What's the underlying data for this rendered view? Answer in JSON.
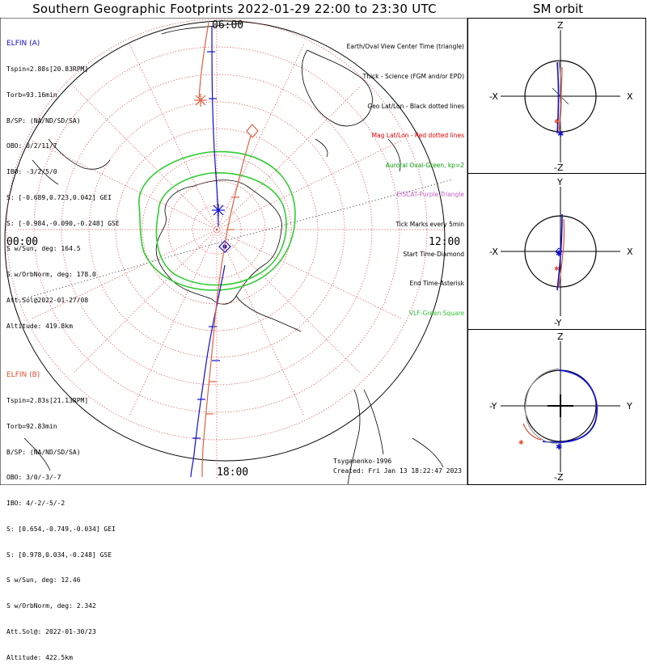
{
  "title": "Southern Geographic Footprints 2022-01-29 22:00 to 23:30 UTC",
  "sm_title": "SM orbit",
  "time_labels": {
    "top": "06:00",
    "left": "00:00",
    "right": "12:00",
    "bottom": "18:00"
  },
  "elfin_a": {
    "name": "ELFIN (A)",
    "color": "#1010d0",
    "lines": [
      "Tspin=2.88s[20.83RPM]",
      "Torb=93.16min",
      "B/SP: (NA/ND/SD/SA)",
      "OBO: 0/2/11/7",
      "IBO: -3/2/5/0",
      "S: [-0.689,0.723,0.042] GEI",
      "S: [-0.984,-0.090,-0.248] GSE",
      "S w/Sun, deg: 164.5",
      "S w/OrbNorm, deg: 178.0",
      "Att.Sol@2022-01-27/08",
      "Altitude: 419.8km"
    ]
  },
  "elfin_b": {
    "name": "ELFIN (B)",
    "color": "#e05030",
    "lines": [
      "Tspin=2.83s[21.13RPM]",
      "Torb=92.83min",
      "B/SP: (NA/ND/SD/SA)",
      "OBO: 3/0/-3/-7",
      "IBO: 4/-2/-5/-2",
      "S: [0.654,-0.749,-0.034] GEI",
      "S: [0.978,0.034,-0.248] GSE",
      "S w/Sun, deg: 12.46",
      "S w/OrbNorm, deg: 2.342",
      "Att.Sol@: 2022-01-30/23",
      "Altitude: 422.5km"
    ]
  },
  "legend": [
    {
      "text": "Earth/Oval View Center Time (triangle)",
      "color": "#000000"
    },
    {
      "text": "Thick - Science (FGM and/or EPD)",
      "color": "#000000"
    },
    {
      "text": "Geo Lat/Lon - Black dotted lines",
      "color": "#000000"
    },
    {
      "text": "Mag Lat/Lon - Red dotted lines",
      "color": "#e00000"
    },
    {
      "text": "Auroral Oval-Green, kp=2",
      "color": "#00a000"
    },
    {
      "text": "EISCAT-Purple Triangle",
      "color": "#c060c0"
    },
    {
      "text": "Tick Marks every 5min",
      "color": "#000000"
    },
    {
      "text": "Start Time-Diamond",
      "color": "#000000"
    },
    {
      "text": "End Time-Asterisk",
      "color": "#000000"
    },
    {
      "text": "VLF-Green Square",
      "color": "#30c030"
    }
  ],
  "credit": "Tsyganenko-1996",
  "created": "Created: Fri Jan 13 18:22:47 2023",
  "sm_panels": [
    {
      "top": "Z",
      "bottom": "-Z",
      "left": "-X",
      "right": "X"
    },
    {
      "top": "Y",
      "bottom": "-Y",
      "left": "-X",
      "right": "X"
    },
    {
      "top": "Z",
      "bottom": "-Z",
      "left": "-Y",
      "right": "Y"
    }
  ]
}
